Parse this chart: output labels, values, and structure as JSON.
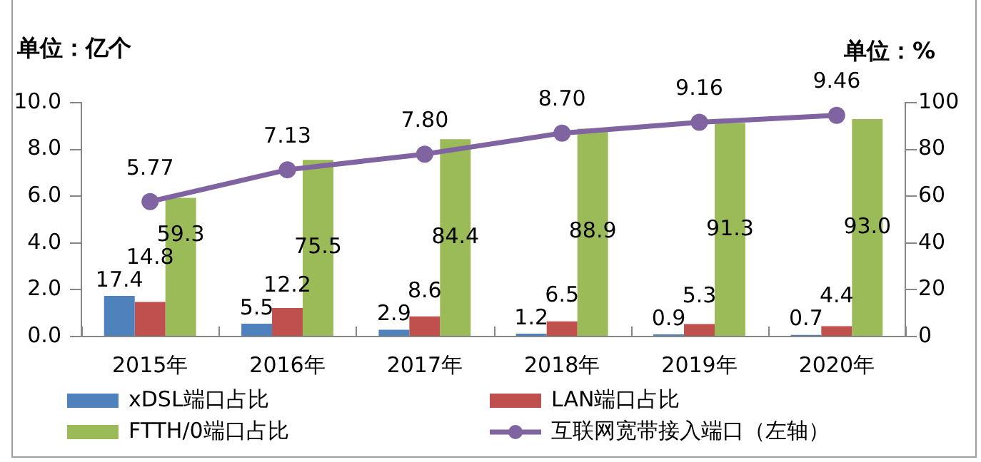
{
  "chart_data": {
    "type": "bar",
    "ylabel": "单位：亿个",
    "y2label": "单位：%",
    "categories": [
      "2015年",
      "2016年",
      "2017年",
      "2018年",
      "2019年",
      "2020年"
    ],
    "series": [
      {
        "name": "xDSL端口占比",
        "axis": "y2",
        "color": "#4f81bd",
        "values": [
          17.4,
          5.5,
          2.9,
          1.2,
          0.9,
          0.7
        ],
        "value_labels": [
          "17.4",
          "5.5",
          "2.9",
          "1.2",
          "0.9",
          "0.7"
        ]
      },
      {
        "name": "LAN端口占比",
        "axis": "y2",
        "color": "#c0504d",
        "values": [
          14.8,
          12.2,
          8.6,
          6.5,
          5.3,
          4.4
        ],
        "value_labels": [
          "14.8",
          "12.2",
          "8.6",
          "6.5",
          "5.3",
          "4.4"
        ]
      },
      {
        "name": "FTTH/0端口占比",
        "axis": "y2",
        "color": "#9bbb59",
        "values": [
          59.3,
          75.5,
          84.4,
          88.9,
          91.3,
          93.0
        ],
        "value_labels": [
          "59.3",
          "75.5",
          "84.4",
          "88.9",
          "91.3",
          "93.0"
        ]
      },
      {
        "name": "互联网宽带接入端口（左轴）",
        "type": "line",
        "axis": "y",
        "color": "#8064a2",
        "values": [
          5.77,
          7.13,
          7.8,
          8.7,
          9.16,
          9.46
        ],
        "value_labels": [
          "5.77",
          "7.13",
          "7.80",
          "8.70",
          "9.16",
          "9.46"
        ]
      }
    ],
    "ylim": [
      0,
      10
    ],
    "yticks": [
      {
        "value": 0,
        "label": "0.0"
      },
      {
        "value": 2,
        "label": "2.0"
      },
      {
        "value": 4,
        "label": "4.0"
      },
      {
        "value": 6,
        "label": "6.0"
      },
      {
        "value": 8,
        "label": "8.0"
      },
      {
        "value": 10,
        "label": "10.0"
      }
    ],
    "y2lim": [
      0,
      100
    ],
    "y2ticks": [
      0,
      20,
      40,
      60,
      80,
      100
    ],
    "legend": "bottom",
    "marker": "circle"
  }
}
